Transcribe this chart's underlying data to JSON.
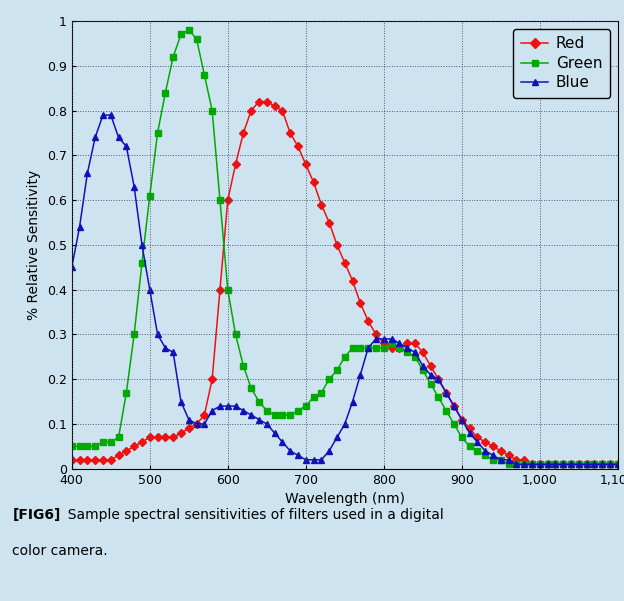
{
  "background_color": "#cde4f0",
  "plot_bg_color": "#cde4f0",
  "xlabel": "Wavelength (nm)",
  "ylabel": "% Relative Sensitivity",
  "xlim": [
    400,
    1100
  ],
  "ylim": [
    0,
    1.0
  ],
  "xticks": [
    400,
    500,
    600,
    700,
    800,
    900,
    1000,
    1100
  ],
  "xtick_labels": [
    "400",
    "500",
    "600",
    "700",
    "800",
    "900",
    "1,000",
    "1,100"
  ],
  "yticks": [
    0,
    0.1,
    0.2,
    0.3,
    0.4,
    0.5,
    0.6,
    0.7,
    0.8,
    0.9,
    1
  ],
  "ytick_labels": [
    "0",
    "0.1",
    "0.2",
    "0.3",
    "0.4",
    "0.5",
    "0.6",
    "0.7",
    "0.8",
    "0.9",
    "1"
  ],
  "red": {
    "x": [
      400,
      410,
      420,
      430,
      440,
      450,
      460,
      470,
      480,
      490,
      500,
      510,
      520,
      530,
      540,
      550,
      560,
      570,
      580,
      590,
      600,
      610,
      620,
      630,
      640,
      650,
      660,
      670,
      680,
      690,
      700,
      710,
      720,
      730,
      740,
      750,
      760,
      770,
      780,
      790,
      800,
      810,
      820,
      830,
      840,
      850,
      860,
      870,
      880,
      890,
      900,
      910,
      920,
      930,
      940,
      950,
      960,
      970,
      980,
      990,
      1000,
      1010,
      1020,
      1030,
      1040,
      1050,
      1060,
      1070,
      1080,
      1090,
      1100
    ],
    "y": [
      0.02,
      0.02,
      0.02,
      0.02,
      0.02,
      0.02,
      0.03,
      0.04,
      0.05,
      0.06,
      0.07,
      0.07,
      0.07,
      0.07,
      0.08,
      0.09,
      0.1,
      0.12,
      0.2,
      0.4,
      0.6,
      0.68,
      0.75,
      0.8,
      0.82,
      0.82,
      0.81,
      0.8,
      0.75,
      0.72,
      0.68,
      0.64,
      0.59,
      0.55,
      0.5,
      0.46,
      0.42,
      0.37,
      0.33,
      0.3,
      0.28,
      0.27,
      0.27,
      0.28,
      0.28,
      0.26,
      0.23,
      0.2,
      0.17,
      0.14,
      0.11,
      0.09,
      0.07,
      0.06,
      0.05,
      0.04,
      0.03,
      0.02,
      0.02,
      0.01,
      0.01,
      0.01,
      0.01,
      0.01,
      0.01,
      0.01,
      0.01,
      0.01,
      0.01,
      0.01,
      0.01
    ],
    "color": "#ee1111",
    "marker": "D",
    "markersize": 4,
    "label": "Red"
  },
  "green": {
    "x": [
      400,
      410,
      420,
      430,
      440,
      450,
      460,
      470,
      480,
      490,
      500,
      510,
      520,
      530,
      540,
      550,
      560,
      570,
      580,
      590,
      600,
      610,
      620,
      630,
      640,
      650,
      660,
      670,
      680,
      690,
      700,
      710,
      720,
      730,
      740,
      750,
      760,
      770,
      780,
      790,
      800,
      810,
      820,
      830,
      840,
      850,
      860,
      870,
      880,
      890,
      900,
      910,
      920,
      930,
      940,
      950,
      960,
      970,
      980,
      990,
      1000,
      1010,
      1020,
      1030,
      1040,
      1050,
      1060,
      1070,
      1080,
      1090,
      1100
    ],
    "y": [
      0.05,
      0.05,
      0.05,
      0.05,
      0.06,
      0.06,
      0.07,
      0.17,
      0.3,
      0.46,
      0.61,
      0.75,
      0.84,
      0.92,
      0.97,
      0.98,
      0.96,
      0.88,
      0.8,
      0.6,
      0.4,
      0.3,
      0.23,
      0.18,
      0.15,
      0.13,
      0.12,
      0.12,
      0.12,
      0.13,
      0.14,
      0.16,
      0.17,
      0.2,
      0.22,
      0.25,
      0.27,
      0.27,
      0.27,
      0.27,
      0.27,
      0.28,
      0.27,
      0.26,
      0.25,
      0.22,
      0.19,
      0.16,
      0.13,
      0.1,
      0.07,
      0.05,
      0.04,
      0.03,
      0.02,
      0.02,
      0.01,
      0.01,
      0.01,
      0.01,
      0.01,
      0.01,
      0.01,
      0.01,
      0.01,
      0.01,
      0.01,
      0.01,
      0.01,
      0.01,
      0.01
    ],
    "color": "#00aa00",
    "marker": "s",
    "markersize": 4,
    "label": "Green"
  },
  "blue": {
    "x": [
      400,
      410,
      420,
      430,
      440,
      450,
      460,
      470,
      480,
      490,
      500,
      510,
      520,
      530,
      540,
      550,
      560,
      570,
      580,
      590,
      600,
      610,
      620,
      630,
      640,
      650,
      660,
      670,
      680,
      690,
      700,
      710,
      720,
      730,
      740,
      750,
      760,
      770,
      780,
      790,
      800,
      810,
      820,
      830,
      840,
      850,
      860,
      870,
      880,
      890,
      900,
      910,
      920,
      930,
      940,
      950,
      960,
      970,
      980,
      990,
      1000,
      1010,
      1020,
      1030,
      1040,
      1050,
      1060,
      1070,
      1080,
      1090,
      1100
    ],
    "y": [
      0.45,
      0.54,
      0.66,
      0.74,
      0.79,
      0.79,
      0.74,
      0.72,
      0.63,
      0.5,
      0.4,
      0.3,
      0.27,
      0.26,
      0.15,
      0.11,
      0.1,
      0.1,
      0.13,
      0.14,
      0.14,
      0.14,
      0.13,
      0.12,
      0.11,
      0.1,
      0.08,
      0.06,
      0.04,
      0.03,
      0.02,
      0.02,
      0.02,
      0.04,
      0.07,
      0.1,
      0.15,
      0.21,
      0.27,
      0.29,
      0.29,
      0.29,
      0.28,
      0.27,
      0.26,
      0.23,
      0.21,
      0.2,
      0.17,
      0.14,
      0.11,
      0.08,
      0.06,
      0.04,
      0.03,
      0.02,
      0.02,
      0.01,
      0.01,
      0.01,
      0.01,
      0.01,
      0.01,
      0.01,
      0.01,
      0.01,
      0.01,
      0.01,
      0.01,
      0.01,
      0.01
    ],
    "color": "#1111bb",
    "marker": "^",
    "markersize": 4,
    "label": "Blue"
  },
  "fig6_label": "[FIG6]",
  "caption_line1": "  Sample spectral sensitivities of filters used in a digital",
  "caption_line2": "color camera."
}
